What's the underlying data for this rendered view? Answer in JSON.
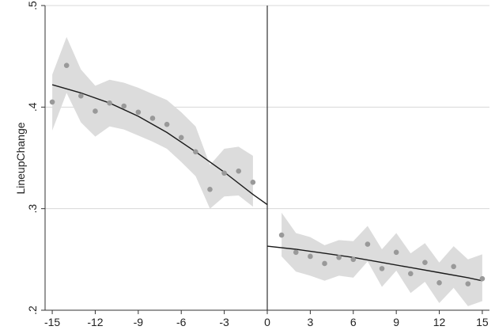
{
  "chart_data": {
    "type": "scatter",
    "title": "",
    "xlabel": "",
    "ylabel": "LineupChange",
    "xlim": [
      -15.5,
      15.5
    ],
    "ylim": [
      0.2,
      0.5
    ],
    "xticks": [
      -15,
      -12,
      -9,
      -6,
      -3,
      0,
      3,
      6,
      9,
      12,
      15
    ],
    "xtick_labels": [
      "-15",
      "-12",
      "-9",
      "-6",
      "-3",
      "0",
      "3",
      "6",
      "9",
      "12",
      "15"
    ],
    "yticks": [
      0.2,
      0.3,
      0.4,
      0.5
    ],
    "ytick_labels": [
      ".2",
      ".3",
      ".4",
      ".5"
    ],
    "grid": "horizontal",
    "cutoff_x": 0,
    "colors": {
      "points": "#999999",
      "band": "#dcdcdc",
      "fit_line": "#1a1a1a",
      "grid": "#d8d8d8",
      "axes": "#333333",
      "cutoff_line": "#333333"
    },
    "points": {
      "x": [
        -15,
        -14,
        -13,
        -12,
        -11,
        -10,
        -9,
        -8,
        -7,
        -6,
        -5,
        -4,
        -3,
        -2,
        -1,
        1,
        2,
        3,
        4,
        5,
        6,
        7,
        8,
        9,
        10,
        11,
        12,
        13,
        14,
        15
      ],
      "y": [
        0.405,
        0.441,
        0.411,
        0.396,
        0.404,
        0.401,
        0.395,
        0.389,
        0.383,
        0.37,
        0.356,
        0.319,
        0.335,
        0.337,
        0.326,
        0.274,
        0.257,
        0.253,
        0.246,
        0.252,
        0.25,
        0.265,
        0.241,
        0.257,
        0.236,
        0.247,
        0.227,
        0.243,
        0.226,
        0.231
      ]
    },
    "band": {
      "left": {
        "x": [
          -15,
          -14,
          -13,
          -12,
          -11,
          -10,
          -9,
          -8,
          -7,
          -6,
          -5,
          -4,
          -3,
          -2,
          -1
        ],
        "upper": [
          0.432,
          0.469,
          0.437,
          0.421,
          0.427,
          0.424,
          0.419,
          0.413,
          0.407,
          0.395,
          0.381,
          0.343,
          0.359,
          0.361,
          0.352
        ],
        "lower": [
          0.377,
          0.414,
          0.385,
          0.371,
          0.381,
          0.378,
          0.372,
          0.366,
          0.359,
          0.346,
          0.332,
          0.3,
          0.312,
          0.313,
          0.302
        ]
      },
      "right": {
        "x": [
          1,
          2,
          3,
          4,
          5,
          6,
          7,
          8,
          9,
          10,
          11,
          12,
          13,
          14,
          15
        ],
        "upper": [
          0.296,
          0.276,
          0.272,
          0.264,
          0.269,
          0.268,
          0.283,
          0.26,
          0.276,
          0.256,
          0.266,
          0.247,
          0.263,
          0.25,
          0.255
        ],
        "lower": [
          0.253,
          0.238,
          0.234,
          0.229,
          0.234,
          0.232,
          0.248,
          0.223,
          0.239,
          0.217,
          0.228,
          0.207,
          0.222,
          0.204,
          0.209
        ]
      }
    },
    "fit": {
      "left": {
        "x": [
          -15,
          -13,
          -11,
          -9,
          -7,
          -5,
          -3,
          -1,
          0
        ],
        "y": [
          0.422,
          0.414,
          0.404,
          0.391,
          0.375,
          0.356,
          0.336,
          0.314,
          0.304
        ]
      },
      "right": {
        "x": [
          0,
          2,
          4,
          6,
          8,
          10,
          12,
          14,
          15
        ],
        "y": [
          0.263,
          0.26,
          0.256,
          0.252,
          0.247,
          0.242,
          0.237,
          0.232,
          0.229
        ]
      }
    }
  }
}
